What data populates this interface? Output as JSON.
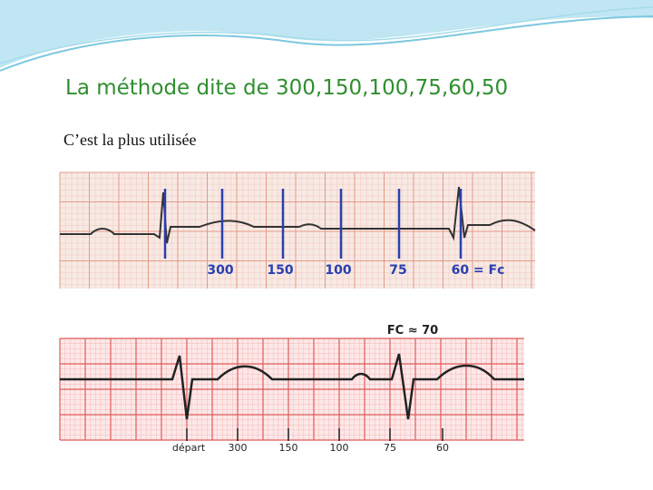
{
  "slide": {
    "title": "La méthode dite de 300,150,100,75,60,50",
    "text": "C’est la plus utilisée",
    "figure_1": {
      "labels": [
        "300",
        "150",
        "100",
        "75",
        "60 = Fc"
      ]
    },
    "figure_2": {
      "heading": "FC ≈ 70",
      "labels": [
        "départ",
        "300",
        "150",
        "100",
        "75",
        "60"
      ]
    }
  }
}
